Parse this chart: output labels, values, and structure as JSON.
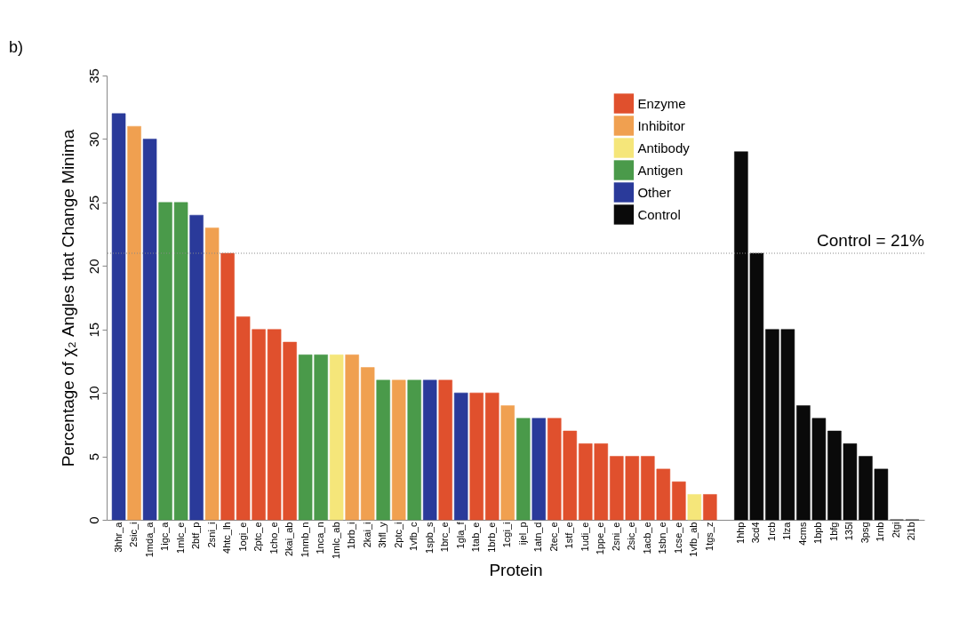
{
  "chart_data": {
    "type": "bar",
    "annotations": [
      "b)"
    ],
    "xlabel": "Protein",
    "ylabel": "Percentage of χ₂ Angles that Change Minima",
    "categories": [
      "3hhr_a",
      "2sic_i",
      "1mda_a",
      "1igc_a",
      "1mlc_e",
      "2btf_p",
      "2sni_i",
      "4htc_lh",
      "1ogi_e",
      "2ptc_e",
      "1cho_e",
      "2kai_ab",
      "1nmb_n",
      "1nca_n",
      "1mlc_ab",
      "1brb_i",
      "2kai_i",
      "3hfl_y",
      "2ptc_i",
      "1vfb_c",
      "1spb_s",
      "1brc_e",
      "1gla_f",
      "1tab_e",
      "1brb_e",
      "1cgi_i",
      "ijel_p",
      "1atn_d",
      "2tec_e",
      "1stf_e",
      "1udi_e",
      "1ppe_e",
      "2sni_e",
      "2sic_e",
      "1acb_e",
      "1sbn_e",
      "1cse_e",
      "1vfb_ab",
      "1tgs_z",
      null,
      "1hhp",
      "3cd4",
      "1rcb",
      "1lza",
      "4cms",
      "1bpb",
      "1bfg",
      "135l",
      "3psg",
      "1rnb",
      "2tgi",
      "2i1b"
    ],
    "series": [
      {
        "name": "Enzyme",
        "color": "#e0502d",
        "values": [
          null,
          null,
          null,
          null,
          null,
          null,
          null,
          21,
          16,
          15,
          15,
          14,
          null,
          null,
          null,
          null,
          null,
          null,
          null,
          null,
          null,
          11,
          null,
          10,
          10,
          null,
          null,
          null,
          8,
          7,
          6,
          6,
          5,
          5,
          5,
          4,
          3,
          null,
          2,
          null,
          null,
          null,
          null,
          null,
          null,
          null,
          null,
          null,
          null,
          null,
          null,
          null
        ]
      },
      {
        "name": "Inhibitor",
        "color": "#f0a050",
        "values": [
          null,
          31,
          null,
          null,
          null,
          null,
          23,
          null,
          null,
          null,
          null,
          null,
          null,
          null,
          null,
          13,
          12,
          null,
          11,
          null,
          null,
          null,
          null,
          null,
          null,
          9,
          null,
          null,
          null,
          null,
          null,
          null,
          null,
          null,
          null,
          null,
          null,
          null,
          null,
          null,
          null,
          null,
          null,
          null,
          null,
          null,
          null,
          null,
          null,
          null,
          null,
          null
        ]
      },
      {
        "name": "Antibody",
        "color": "#f5e67a",
        "values": [
          null,
          null,
          null,
          null,
          null,
          null,
          null,
          null,
          null,
          null,
          null,
          null,
          null,
          null,
          13,
          null,
          null,
          null,
          null,
          null,
          null,
          null,
          null,
          null,
          null,
          null,
          null,
          null,
          null,
          null,
          null,
          null,
          null,
          null,
          null,
          null,
          null,
          2,
          null,
          null,
          null,
          null,
          null,
          null,
          null,
          null,
          null,
          null,
          null,
          null,
          null,
          null
        ]
      },
      {
        "name": "Antigen",
        "color": "#4a9a4a",
        "values": [
          null,
          null,
          null,
          25,
          25,
          null,
          null,
          null,
          null,
          null,
          null,
          null,
          13,
          13,
          null,
          null,
          null,
          11,
          null,
          11,
          null,
          null,
          null,
          null,
          null,
          null,
          8,
          null,
          null,
          null,
          null,
          null,
          null,
          null,
          null,
          null,
          null,
          null,
          null,
          null,
          null,
          null,
          null,
          null,
          null,
          null,
          null,
          null,
          null,
          null,
          null,
          null
        ]
      },
      {
        "name": "Other",
        "color": "#2a3a9a",
        "values": [
          32,
          null,
          30,
          null,
          null,
          24,
          null,
          null,
          null,
          null,
          null,
          null,
          null,
          null,
          null,
          null,
          null,
          null,
          null,
          null,
          11,
          null,
          10,
          null,
          null,
          null,
          null,
          8,
          null,
          null,
          null,
          null,
          null,
          null,
          null,
          null,
          null,
          null,
          null,
          null,
          null,
          null,
          null,
          null,
          null,
          null,
          null,
          null,
          null,
          null,
          null,
          null
        ]
      },
      {
        "name": "Control",
        "color": "#0a0a0a",
        "values": [
          null,
          null,
          null,
          null,
          null,
          null,
          null,
          null,
          null,
          null,
          null,
          null,
          null,
          null,
          null,
          null,
          null,
          null,
          null,
          null,
          null,
          null,
          null,
          null,
          null,
          null,
          null,
          null,
          null,
          null,
          null,
          null,
          null,
          null,
          null,
          null,
          null,
          null,
          null,
          null,
          29,
          21,
          15,
          15,
          9,
          8,
          7,
          6,
          5,
          4,
          0,
          0
        ]
      }
    ],
    "ylim": [
      0,
      35
    ],
    "yticks": [
      0,
      5,
      10,
      15,
      20,
      25,
      30,
      35
    ],
    "ref_lines": [
      {
        "axis": "y",
        "value": 21,
        "label": "Control = 21%",
        "color": "#888888",
        "line_style": "dotted"
      }
    ],
    "grid": false,
    "legend": "top right"
  }
}
